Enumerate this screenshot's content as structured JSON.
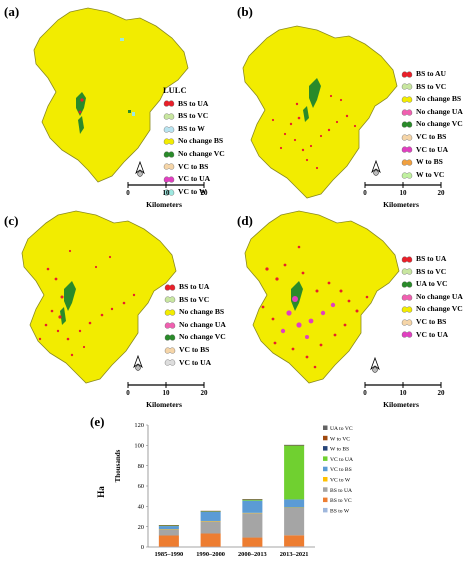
{
  "panels": [
    {
      "label": "(a)",
      "legend_title": "LULC",
      "legend": [
        {
          "text": "BS to UA",
          "color": "#e8202a"
        },
        {
          "text": "BS to VC",
          "color": "#c8e6a0"
        },
        {
          "text": "BS to W",
          "color": "#b8e4f0"
        },
        {
          "text": "No change BS",
          "color": "#f2ec00"
        },
        {
          "text": "No change VC",
          "color": "#2a8a2a"
        },
        {
          "text": "VC to BS",
          "color": "#f5d5a8"
        },
        {
          "text": "VC to UA",
          "color": "#e040c0"
        },
        {
          "text": "VC to W",
          "color": "#9ee8e0"
        }
      ],
      "scale_ticks": [
        "0",
        "10",
        "20"
      ],
      "scale_unit": "Kilometers"
    },
    {
      "label": "(b)",
      "legend_title": "",
      "legend": [
        {
          "text": "BS to AU",
          "color": "#e8202a"
        },
        {
          "text": "BS to VC",
          "color": "#c8e6a0"
        },
        {
          "text": "No change BS",
          "color": "#f2ec00"
        },
        {
          "text": "No change UA",
          "color": "#f060b0"
        },
        {
          "text": "No change VC",
          "color": "#2a8a2a"
        },
        {
          "text": "VC to BS",
          "color": "#f5d5a8"
        },
        {
          "text": "VC to UA",
          "color": "#e040c0"
        },
        {
          "text": "W to BS",
          "color": "#f0a040"
        },
        {
          "text": "W to VC",
          "color": "#c0f0a0"
        }
      ],
      "scale_ticks": [
        "0",
        "10",
        "20"
      ],
      "scale_unit": "Kilometers"
    },
    {
      "label": "(c)",
      "legend_title": "",
      "legend": [
        {
          "text": "BS to UA",
          "color": "#e8202a"
        },
        {
          "text": "BS to VC",
          "color": "#c8e6a0"
        },
        {
          "text": "No change BS",
          "color": "#f2ec00"
        },
        {
          "text": "No change UA",
          "color": "#f060b0"
        },
        {
          "text": "No change VC",
          "color": "#2a8a2a"
        },
        {
          "text": "VC to BS",
          "color": "#f5d5a8"
        },
        {
          "text": "VC to UA",
          "color": "#dddddd"
        }
      ],
      "scale_ticks": [
        "0",
        "10",
        "20"
      ],
      "scale_unit": "Kilometers"
    },
    {
      "label": "(d)",
      "legend_title": "",
      "legend": [
        {
          "text": "BS to UA",
          "color": "#e8202a"
        },
        {
          "text": "BS to VC",
          "color": "#c8e6a0"
        },
        {
          "text": "UA to VC",
          "color": "#2a8a2a"
        },
        {
          "text": "No change UA",
          "color": "#f060b0"
        },
        {
          "text": "No change VC",
          "color": "#f2ec00"
        },
        {
          "text": "VC to BS",
          "color": "#f5d5a8"
        },
        {
          "text": "VC to UA",
          "color": "#e040c0"
        }
      ],
      "scale_ticks": [
        "0",
        "10",
        "20"
      ],
      "scale_unit": "Kilometers"
    }
  ],
  "map_colors": {
    "basin": "#f2ec00",
    "border": "#8a8a20",
    "veg": "#2a8a2a",
    "urban": "#e8202a",
    "pink": "#e040c0",
    "water": "#9ee8e0"
  },
  "chart_label": "(e)",
  "chart_data": {
    "type": "bar",
    "stacked": true,
    "categories": [
      "1985–1990",
      "1990–2000",
      "2000–2013",
      "2013–2021"
    ],
    "ylabel": "Ha",
    "ylabel2": "Thousands",
    "ylim": [
      0,
      120
    ],
    "yticks": [
      0,
      20,
      40,
      60,
      80,
      100,
      120
    ],
    "series": [
      {
        "name": "BS to W",
        "color": "#9fb7dc",
        "values": [
          0.3,
          0.3,
          0.3,
          0.5
        ]
      },
      {
        "name": "BS to VC",
        "color": "#ed7d31",
        "values": [
          11,
          13,
          9,
          11
        ]
      },
      {
        "name": "BS to UA",
        "color": "#a5a5a5",
        "values": [
          6,
          12,
          24,
          27
        ]
      },
      {
        "name": "VC to W",
        "color": "#ffc000",
        "values": [
          0.3,
          0.3,
          0.3,
          0.3
        ]
      },
      {
        "name": "VC to BS",
        "color": "#5b9bd5",
        "values": [
          3,
          9,
          12,
          8
        ]
      },
      {
        "name": "VC to UA",
        "color": "#70d030",
        "values": [
          0.5,
          0.5,
          1,
          53
        ]
      },
      {
        "name": "W to BS",
        "color": "#264478",
        "values": [
          0.3,
          0.3,
          0.3,
          0.3
        ]
      },
      {
        "name": "W to VC",
        "color": "#9e480e",
        "values": [
          0.2,
          0.2,
          0.2,
          0.2
        ]
      },
      {
        "name": "UA to VC",
        "color": "#636363",
        "values": [
          0,
          0,
          0,
          0.2
        ]
      }
    ],
    "legend_order": [
      "UA to VC",
      "W to VC",
      "W to BS",
      "VC to UA",
      "VC to BS",
      "VC to W",
      "BS to UA",
      "BS to VC",
      "BS to W"
    ],
    "legend_position": "right"
  }
}
